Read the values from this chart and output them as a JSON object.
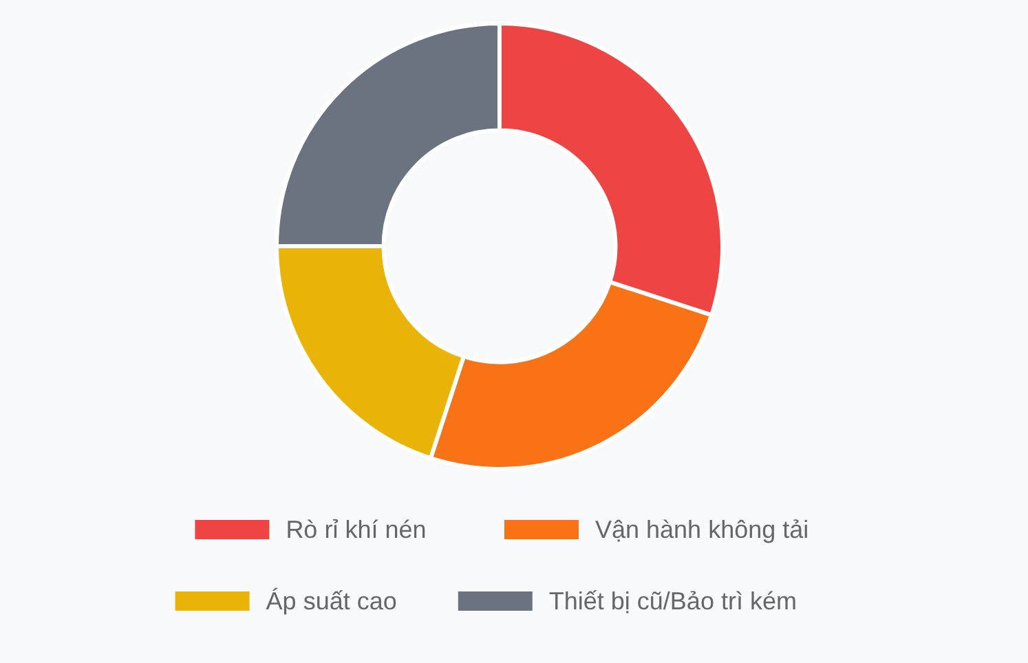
{
  "chart_data": {
    "type": "donut",
    "categories": [
      "Rò rỉ khí nén",
      "Vận hành không tải",
      "Áp suất cao",
      "Thiết bị cũ/Bảo trì kém"
    ],
    "values": [
      30,
      25,
      20,
      25
    ],
    "colors": [
      "#ef4444",
      "#f97316",
      "#eab308",
      "#6b7280"
    ],
    "legend": "bottom"
  }
}
